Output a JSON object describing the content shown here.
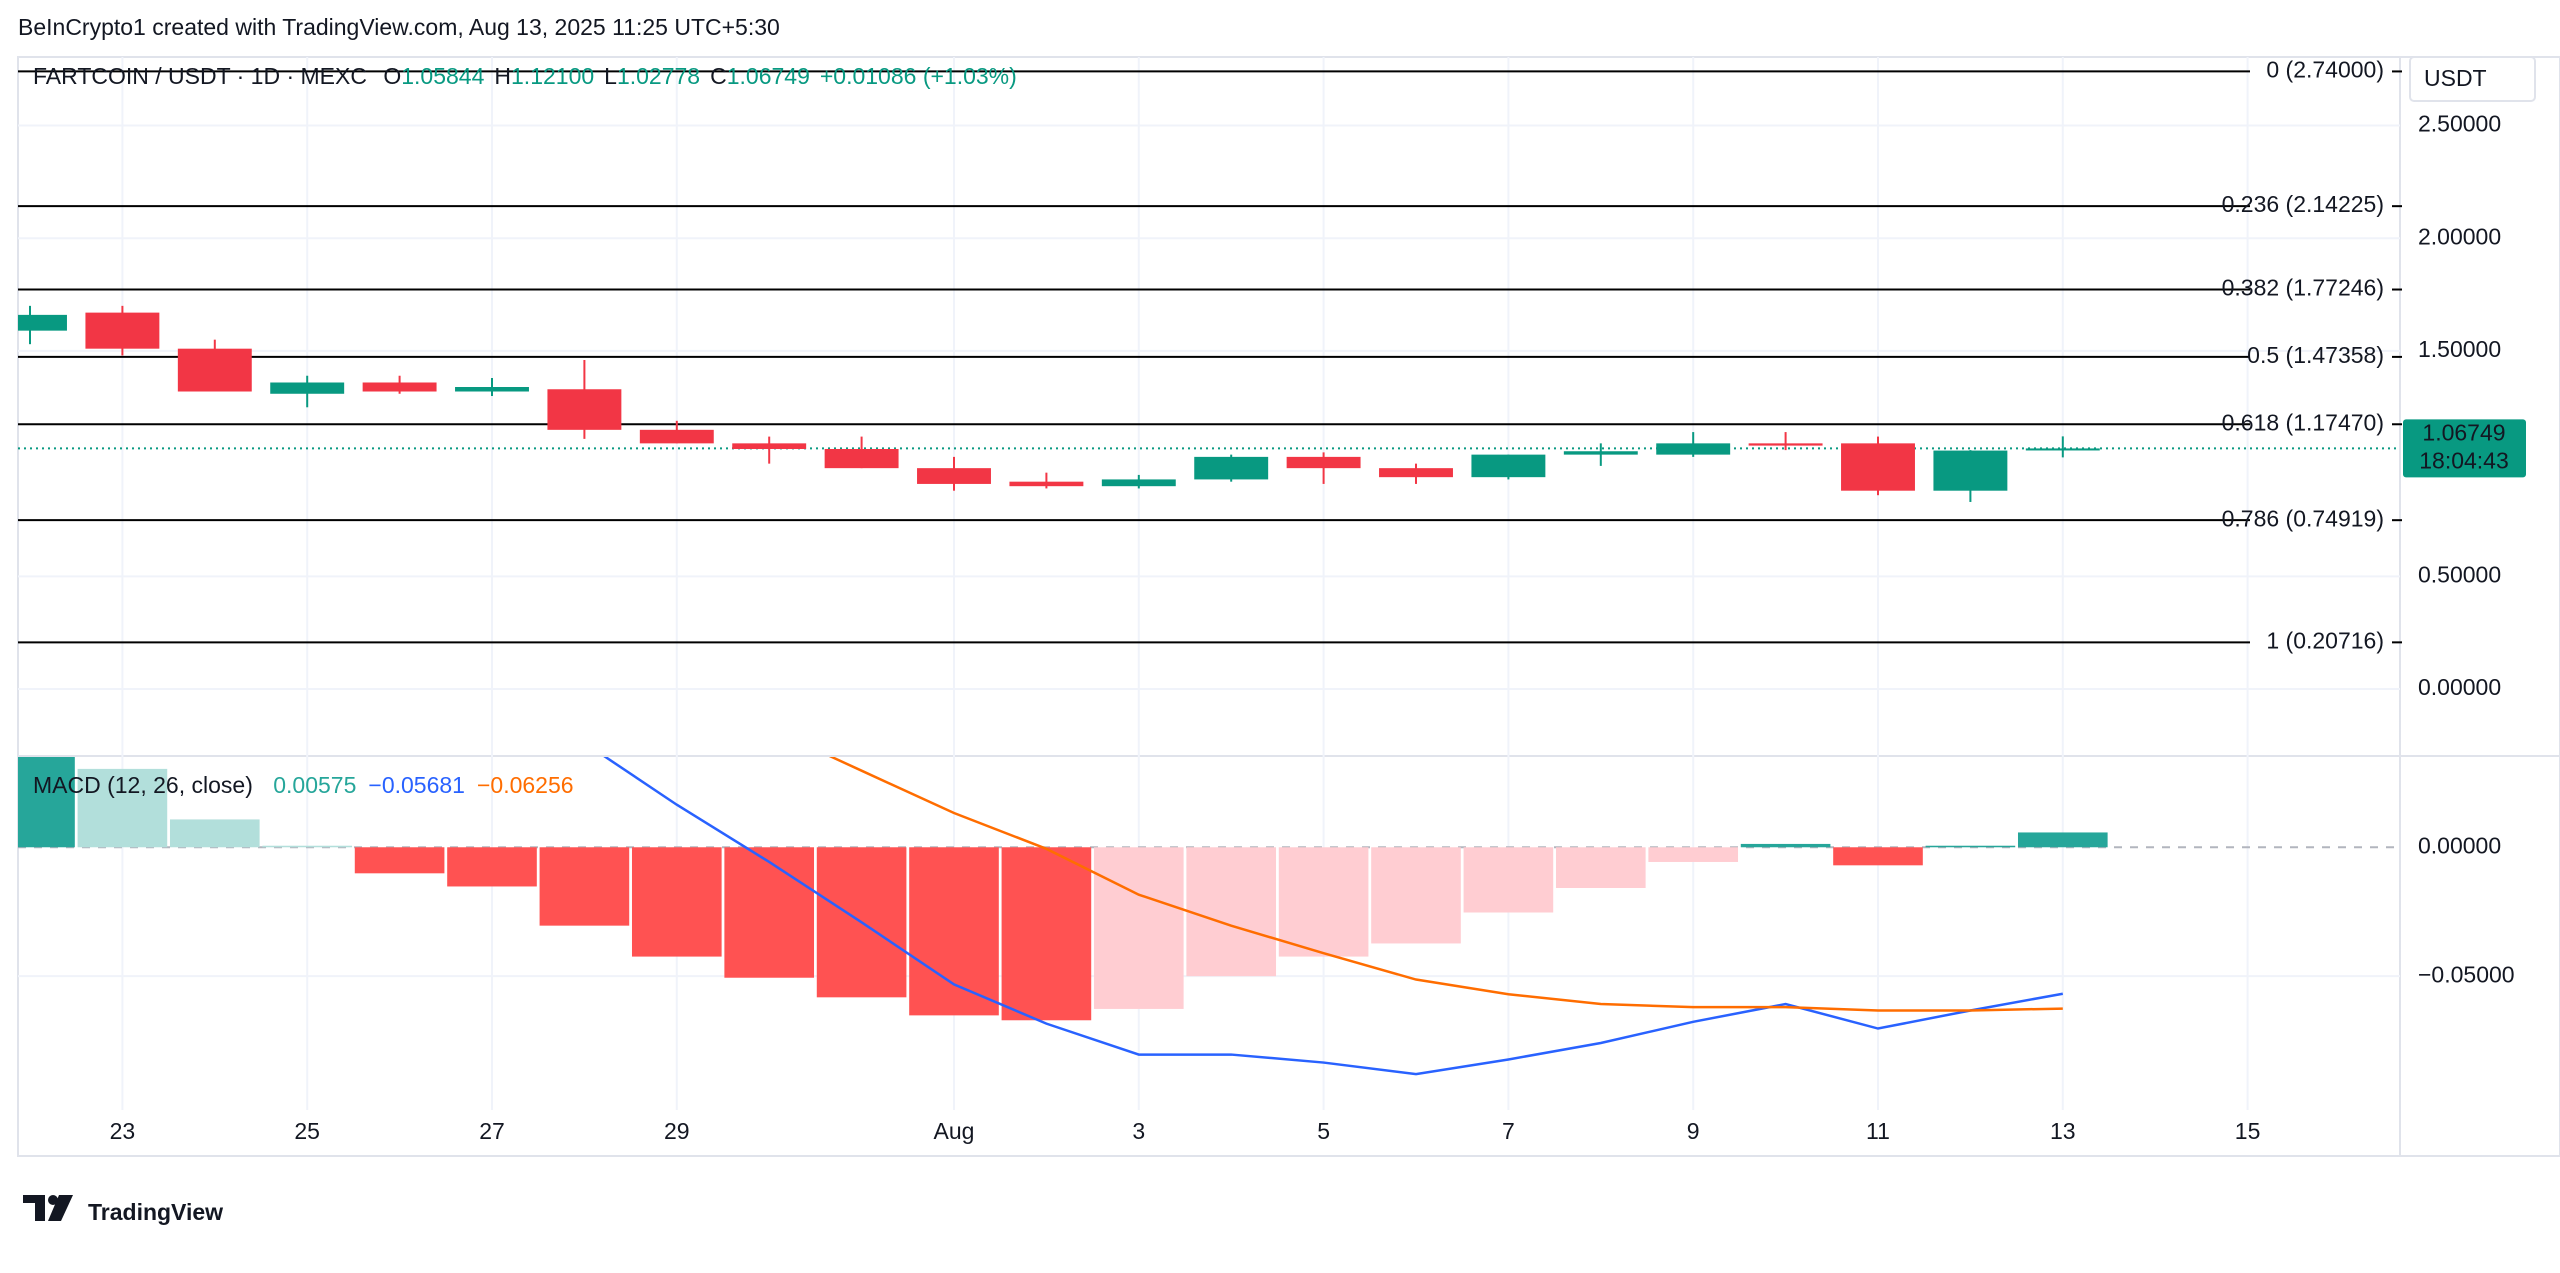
{
  "header": "BeInCrypto1 created with TradingView.com, Aug 13, 2025 11:25 UTC+5:30",
  "footer": {
    "brand": "TradingView"
  },
  "chart_data": {
    "type": "candlestick",
    "currency": "USDT",
    "legend": {
      "symbol": "FARTCOIN / USDT · 1D · MEXC",
      "items": [
        {
          "key": "O",
          "label": "1.05844"
        },
        {
          "key": "H",
          "label": "1.12100"
        },
        {
          "key": "L",
          "label": "1.02778"
        },
        {
          "key": "C",
          "label": "1.06749"
        }
      ],
      "change": "+0.01086 (+1.03%)"
    },
    "categories": [
      null,
      "23",
      null,
      "25",
      null,
      "27",
      null,
      "29",
      null,
      null,
      "Aug",
      null,
      "3",
      null,
      "5",
      null,
      "7",
      null,
      "9",
      null,
      "11",
      null,
      "13",
      null,
      "15"
    ],
    "open": [
      1.59,
      1.67,
      1.51,
      1.31,
      1.36,
      1.32,
      1.33,
      1.15,
      1.09,
      1.065,
      0.98,
      0.92,
      0.9,
      0.93,
      1.03,
      0.98,
      0.94,
      1.04,
      1.04,
      1.09,
      1.09,
      0.88,
      1.05844,
      null,
      null
    ],
    "high": [
      1.7,
      1.7,
      1.55,
      1.39,
      1.39,
      1.38,
      1.46,
      1.19,
      1.12,
      1.12,
      1.03,
      0.96,
      0.95,
      1.04,
      1.05,
      1.0,
      1.04,
      1.09,
      1.14,
      1.14,
      1.12,
      1.06,
      1.121,
      null,
      null
    ],
    "low": [
      1.53,
      1.48,
      1.32,
      1.25,
      1.31,
      1.3,
      1.11,
      1.09,
      1.0,
      0.98,
      0.88,
      0.89,
      0.89,
      0.92,
      0.91,
      0.91,
      0.93,
      0.99,
      1.03,
      1.06,
      0.86,
      0.83,
      1.02778,
      null,
      null
    ],
    "close": [
      1.66,
      1.51,
      1.32,
      1.36,
      1.32,
      1.34,
      1.15,
      1.09,
      1.065,
      0.98,
      0.91,
      0.9,
      0.93,
      1.03,
      0.98,
      0.94,
      1.04,
      1.055,
      1.09,
      1.08,
      0.88,
      1.058,
      1.06749,
      null,
      null
    ],
    "up_color": "#089981",
    "down_color": "#f23645",
    "ylim": [
      -0.297,
      2.804
    ],
    "yticks": [
      {
        "value": 0,
        "label": "0.00000"
      },
      {
        "value": 0.5,
        "label": "0.50000"
      },
      {
        "value": 1.5,
        "label": "1.50000"
      },
      {
        "value": 2,
        "label": "2.00000"
      },
      {
        "value": 2.5,
        "label": "2.50000"
      }
    ],
    "grid": true,
    "fib_levels": [
      {
        "value": 2.74,
        "label": "0 (2.74000)"
      },
      {
        "value": 2.14225,
        "label": "0.236 (2.14225)"
      },
      {
        "value": 1.77246,
        "label": "0.382 (1.77246)"
      },
      {
        "value": 1.47358,
        "label": "0.5 (1.47358)"
      },
      {
        "value": 1.1747,
        "label": "0.618 (1.17470)"
      },
      {
        "value": 0.74919,
        "label": "0.786 (0.74919)"
      },
      {
        "value": 0.20716,
        "label": "1 (0.20716)"
      }
    ],
    "fib_color": "#000000",
    "last_price": 1.06749,
    "countdown": "18:04:43",
    "macd": {
      "type": "macd",
      "title": "MACD (12, 26, close)",
      "ylim": [
        -0.1019,
        0.0354
      ],
      "yticks": [
        {
          "value": 0,
          "label": "0.00000"
        },
        {
          "value": -0.05,
          "label": "−0.05000"
        }
      ],
      "histogram": {
        "last_label": "0.00575",
        "label_color": "#26a69a",
        "values": [
          0.04,
          0.0304,
          0.0108,
          0.0006,
          -0.0101,
          -0.0152,
          -0.0304,
          -0.0424,
          -0.0506,
          -0.0582,
          -0.0652,
          -0.0671,
          -0.0627,
          -0.05,
          -0.0424,
          -0.0373,
          -0.0253,
          -0.0158,
          -0.0057,
          0.0013,
          -0.007,
          0.0006,
          0.00575,
          null,
          null
        ],
        "colors": [
          "#26a69a",
          "#b2dfdb",
          "#b2dfdb",
          "#b2dfdb",
          "#ff5252",
          "#ff5252",
          "#ff5252",
          "#ff5252",
          "#ff5252",
          "#ff5252",
          "#ff5252",
          "#ff5252",
          "#ffcdd2",
          "#ffcdd2",
          "#ffcdd2",
          "#ffcdd2",
          "#ffcdd2",
          "#ffcdd2",
          "#ffcdd2",
          "#26a69a",
          "#ff5252",
          "#26a69a",
          "#26a69a",
          null,
          null
        ]
      },
      "series": [
        {
          "last_label": "−0.05681",
          "color": "#2962ff",
          "values": [
            null,
            null,
            null,
            null,
            null,
            null,
            0.0405,
            0.0165,
            -0.0057,
            -0.0291,
            -0.0532,
            -0.0684,
            -0.0804,
            -0.0804,
            -0.0835,
            -0.088,
            -0.0823,
            -0.0759,
            -0.0677,
            -0.0608,
            -0.0703,
            -0.0633,
            -0.05681,
            null,
            null
          ]
        },
        {
          "last_label": "−0.06256",
          "color": "#ff6d00",
          "values": [
            null,
            null,
            null,
            null,
            null,
            null,
            null,
            null,
            0.0462,
            0.0297,
            0.0133,
            -0.0006,
            -0.0184,
            -0.0304,
            -0.0411,
            -0.0513,
            -0.057,
            -0.0608,
            -0.062,
            -0.062,
            -0.0633,
            -0.0633,
            -0.06256,
            null,
            null
          ]
        }
      ]
    }
  }
}
